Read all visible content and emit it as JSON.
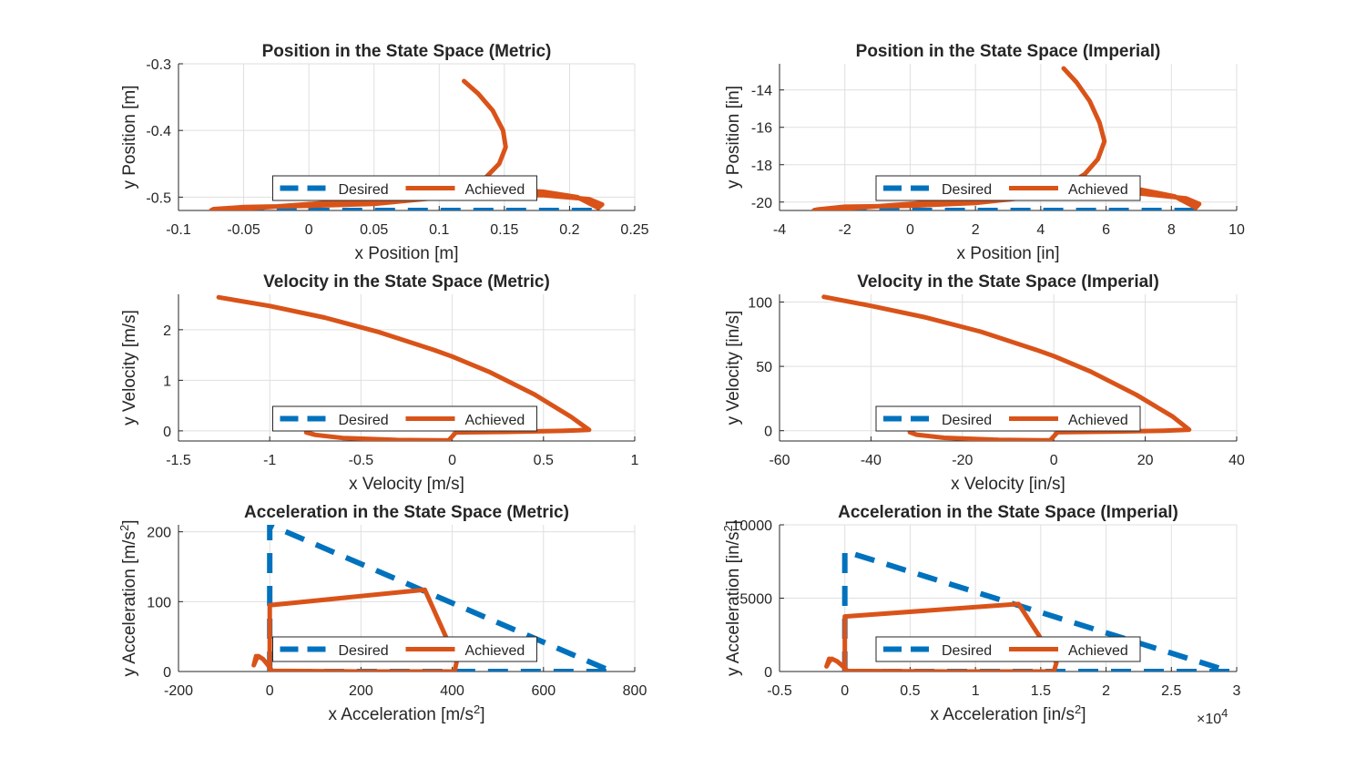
{
  "figure": {
    "colors": {
      "desired": "#0072BD",
      "achieved": "#D95319",
      "grid": "#DFDFDF",
      "axis": "#262626",
      "background": "#FFFFFF"
    },
    "legend_labels": {
      "desired": "Desired",
      "achieved": "Achieved"
    }
  },
  "chart_data": [
    {
      "type": "line",
      "title": "Position in the State Space (Metric)",
      "xlabel": "x Position [m]",
      "ylabel": "y Position [m]",
      "xlim": [
        -0.1,
        0.25
      ],
      "ylim": [
        -0.52,
        -0.3
      ],
      "xticks": [
        "-0.1",
        "-0.05",
        "0",
        "0.05",
        "0.1",
        "0.15",
        "0.2",
        "0.25"
      ],
      "yticks": [
        "-0.3",
        "-0.4",
        "-0.5"
      ],
      "grid": true,
      "legend": "bottom",
      "exponent": "",
      "series": [
        {
          "name": "Desired",
          "style": "dashed",
          "x": [
            -0.075,
            0.225
          ],
          "y": [
            -0.52,
            -0.52
          ]
        },
        {
          "name": "Achieved",
          "style": "solid",
          "x": [
            0.119,
            0.13,
            0.141,
            0.149,
            0.151,
            0.146,
            0.136,
            0.121,
            0.098,
            0.05,
            0.0,
            -0.05,
            -0.073,
            -0.075,
            -0.06,
            0.0,
            0.1,
            0.18,
            0.215,
            0.225,
            0.222,
            0.206,
            0.18,
            0.15,
            0.12
          ],
          "y": [
            -0.326,
            -0.345,
            -0.37,
            -0.4,
            -0.425,
            -0.45,
            -0.47,
            -0.487,
            -0.501,
            -0.51,
            -0.513,
            -0.515,
            -0.518,
            -0.52,
            -0.519,
            -0.5105,
            -0.497,
            -0.497,
            -0.503,
            -0.511,
            -0.516,
            -0.5,
            -0.492,
            -0.488,
            -0.488
          ]
        }
      ]
    },
    {
      "type": "line",
      "title": "Position in the State Space (Imperial)",
      "xlabel": "x Position [in]",
      "ylabel": "y Position [in]",
      "xlim": [
        -4,
        10
      ],
      "ylim": [
        -20.45,
        -12.6
      ],
      "xticks": [
        "-4",
        "-2",
        "0",
        "2",
        "4",
        "6",
        "8",
        "10"
      ],
      "yticks": [
        "-14",
        "-16",
        "-18",
        "-20"
      ],
      "grid": true,
      "legend": "bottom",
      "exponent": "",
      "series": [
        {
          "name": "Desired",
          "style": "dashed",
          "x": [
            -2.95,
            8.85
          ],
          "y": [
            -20.45,
            -20.45
          ]
        },
        {
          "name": "Achieved",
          "style": "solid",
          "x": [
            4.7,
            5.1,
            5.5,
            5.8,
            5.95,
            5.75,
            5.35,
            4.75,
            3.85,
            2.0,
            0.0,
            -2.0,
            -2.85,
            -2.95,
            -2.35,
            0.0,
            3.9,
            7.1,
            8.45,
            8.85,
            8.75,
            8.1,
            7.1,
            5.9,
            4.7
          ],
          "y": [
            -12.85,
            -13.6,
            -14.6,
            -15.75,
            -16.75,
            -17.7,
            -18.5,
            -19.15,
            -19.7,
            -20.05,
            -20.2,
            -20.25,
            -20.4,
            -20.45,
            -20.4,
            -20.1,
            -19.55,
            -19.55,
            -19.8,
            -20.1,
            -20.3,
            -19.7,
            -19.35,
            -19.2,
            -19.2
          ]
        }
      ]
    },
    {
      "type": "line",
      "title": "Velocity in the State Space (Metric)",
      "xlabel": "x Velocity [m/s]",
      "ylabel": "y Velocity [m/s]",
      "xlim": [
        -1.5,
        1
      ],
      "ylim": [
        -0.2,
        2.7
      ],
      "xticks": [
        "-1.5",
        "-1",
        "-0.5",
        "0",
        "0.5",
        "1"
      ],
      "yticks": [
        "0",
        "1",
        "2"
      ],
      "grid": true,
      "legend": "bottom",
      "exponent": "",
      "series": [
        {
          "name": "Desired",
          "style": "dashed",
          "x": [
            0,
            0
          ],
          "y": [
            0,
            0
          ]
        },
        {
          "name": "Achieved",
          "style": "solid",
          "x": [
            -1.28,
            -1.0,
            -0.7,
            -0.4,
            -0.1,
            0.0,
            0.2,
            0.45,
            0.65,
            0.75,
            0.6,
            0.3,
            0.02,
            0.0,
            -0.02,
            -0.3,
            -0.6,
            -0.75,
            -0.8
          ],
          "y": [
            2.64,
            2.47,
            2.24,
            1.95,
            1.6,
            1.47,
            1.17,
            0.72,
            0.28,
            0.02,
            0.0,
            -0.02,
            -0.03,
            -0.11,
            -0.19,
            -0.18,
            -0.14,
            -0.08,
            -0.03
          ]
        }
      ]
    },
    {
      "type": "line",
      "title": "Velocity in the State Space (Imperial)",
      "xlabel": "x Velocity [in/s]",
      "ylabel": "y Velocity [in/s]",
      "xlim": [
        -60,
        40
      ],
      "ylim": [
        -8,
        106
      ],
      "xticks": [
        "-60",
        "-40",
        "-20",
        "0",
        "20",
        "40"
      ],
      "yticks": [
        "0",
        "50",
        "100"
      ],
      "grid": true,
      "legend": "bottom",
      "exponent": "",
      "series": [
        {
          "name": "Desired",
          "style": "dashed",
          "x": [
            0,
            0
          ],
          "y": [
            0,
            0
          ]
        },
        {
          "name": "Achieved",
          "style": "solid",
          "x": [
            -50.3,
            -40,
            -28,
            -16,
            -4,
            0,
            8,
            18,
            26,
            29.6,
            24,
            12,
            0.8,
            0,
            -0.8,
            -12,
            -24,
            -30,
            -31.5
          ],
          "y": [
            104,
            97,
            88,
            77,
            63,
            58,
            46,
            28,
            11,
            0.8,
            0,
            -0.8,
            -1.2,
            -4.3,
            -7.5,
            -7.1,
            -5.5,
            -3.1,
            -1.2
          ]
        }
      ]
    },
    {
      "type": "line",
      "title": "Acceleration in the State Space (Metric)",
      "xlabel": "x Acceleration [m/s²]",
      "ylabel": "y Acceleration [m/s²]",
      "xlim": [
        -200,
        800
      ],
      "ylim": [
        0,
        210
      ],
      "xticks": [
        "-200",
        "0",
        "200",
        "400",
        "600",
        "800"
      ],
      "yticks": [
        "0",
        "100",
        "200"
      ],
      "grid": true,
      "legend": "bottom",
      "exponent": "",
      "series": [
        {
          "name": "Desired",
          "style": "dashed",
          "x": [
            0,
            0,
            750,
            0
          ],
          "y": [
            0,
            210,
            0,
            0
          ]
        },
        {
          "name": "Achieved",
          "style": "solid",
          "x": [
            0,
            0,
            340,
            410,
            405,
            200,
            5,
            -5,
            -15,
            -25,
            -30,
            -35,
            -30
          ],
          "y": [
            0,
            95,
            117,
            15,
            0,
            0,
            1,
            10,
            18,
            22,
            17,
            9,
            22
          ]
        }
      ]
    },
    {
      "type": "line",
      "title": "Acceleration in the State Space (Imperial)",
      "xlabel": "x Acceleration [in/s²]",
      "ylabel": "y Acceleration [in/s²]",
      "xlim": [
        -0.5,
        3
      ],
      "ylim": [
        0,
        10000
      ],
      "xticks": [
        "-0.5",
        "0",
        "0.5",
        "1",
        "1.5",
        "2",
        "2.5",
        "3"
      ],
      "yticks": [
        "0",
        "5000",
        "10000"
      ],
      "grid": true,
      "legend": "bottom",
      "exponent": "×10⁴",
      "series": [
        {
          "name": "Desired",
          "style": "dashed",
          "x": [
            0,
            0,
            2.95,
            0
          ],
          "y": [
            0,
            8200,
            0,
            0
          ]
        },
        {
          "name": "Achieved",
          "style": "solid",
          "x": [
            0,
            0,
            1.33,
            1.62,
            1.6,
            0.8,
            0.02,
            -0.02,
            -0.06,
            -0.1,
            -0.12,
            -0.14,
            -0.12
          ],
          "y": [
            0,
            3750,
            4600,
            600,
            0,
            0,
            40,
            400,
            700,
            870,
            670,
            350,
            870
          ]
        }
      ]
    }
  ]
}
